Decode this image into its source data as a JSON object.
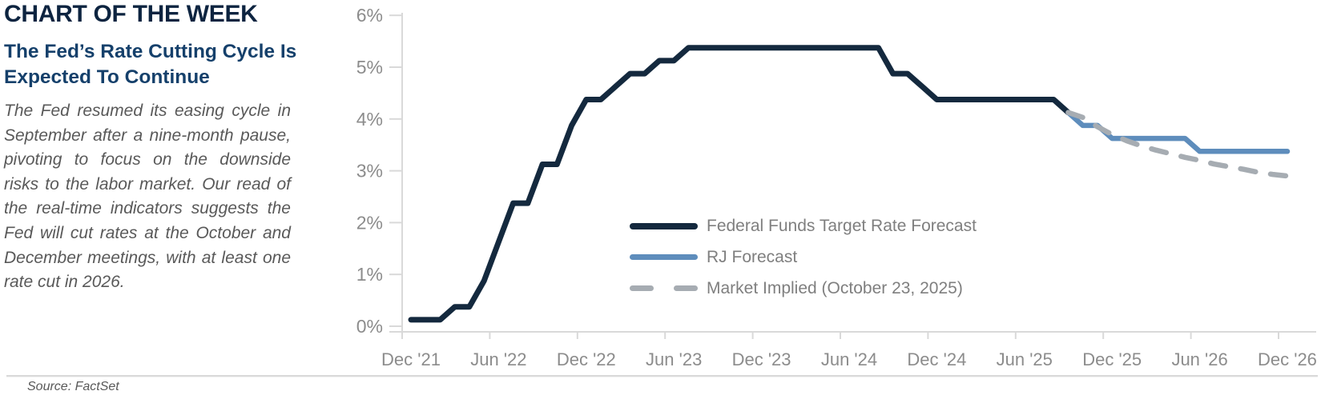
{
  "header": {
    "title": "CHART OF THE WEEK",
    "subtitle": "The Fed’s Rate Cutting Cycle Is Expected To Continue",
    "commentary": "The Fed resumed its easing cycle in September after a nine-month pause, pivoting to focus on the downside risks to the labor market. Our read of the real-time indicators suggests the Fed will cut rates at the October and December meetings, with at least one rate cut in 2026."
  },
  "footer": {
    "source": "Source: FactSet"
  },
  "legend": {
    "items": [
      {
        "label": "Federal Funds Target Rate Forecast",
        "swatch": "navy-solid"
      },
      {
        "label": "RJ Forecast",
        "swatch": "blue-solid"
      },
      {
        "label": "Market Implied (October 23, 2025)",
        "swatch": "gray-dashed"
      }
    ]
  },
  "colors": {
    "navy": "#14293e",
    "blue": "#5e8dbc",
    "gray_dashed": "#a6acb2",
    "axis_line": "#d9d9d9",
    "axis_text": "#8c8c8c",
    "legend_text": "#7f7f7f",
    "heading_text": "#0d2440",
    "subheading_text": "#15406b",
    "body_text": "#595959"
  },
  "chart_data": {
    "type": "line",
    "title": "",
    "xlabel": "",
    "ylabel": "",
    "x_unit": "months since Dec 2021",
    "ylim": [
      0,
      6
    ],
    "grid": false,
    "legend_position": "inside-lower-right",
    "y_tick_labels": [
      "0%",
      "1%",
      "2%",
      "3%",
      "4%",
      "5%",
      "6%"
    ],
    "y_tick_values": [
      0,
      1,
      2,
      3,
      4,
      5,
      6
    ],
    "x_tick_labels": [
      "Dec '21",
      "Jun '22",
      "Dec '22",
      "Jun '23",
      "Dec '23",
      "Jun '24",
      "Dec '24",
      "Jun '25",
      "Dec '25",
      "Jun '26",
      "Dec '26"
    ],
    "x_tick_months": [
      0,
      6,
      12,
      18,
      24,
      30,
      36,
      42,
      48,
      54,
      60
    ],
    "series": [
      {
        "name": "Federal Funds Target Rate Forecast",
        "color": "#14293e",
        "style": "solid",
        "width": 7,
        "points": [
          [
            0,
            0.125
          ],
          [
            2,
            0.125
          ],
          [
            3,
            0.375
          ],
          [
            4,
            0.375
          ],
          [
            5,
            0.875
          ],
          [
            6,
            1.625
          ],
          [
            7,
            2.375
          ],
          [
            8,
            2.375
          ],
          [
            9,
            3.125
          ],
          [
            10,
            3.125
          ],
          [
            11,
            3.875
          ],
          [
            12,
            4.375
          ],
          [
            13,
            4.375
          ],
          [
            14,
            4.625
          ],
          [
            15,
            4.875
          ],
          [
            16,
            4.875
          ],
          [
            17,
            5.125
          ],
          [
            18,
            5.125
          ],
          [
            19,
            5.375
          ],
          [
            32,
            5.375
          ],
          [
            33,
            4.875
          ],
          [
            34,
            4.875
          ],
          [
            35,
            4.625
          ],
          [
            36,
            4.375
          ],
          [
            44,
            4.375
          ],
          [
            45,
            4.125
          ]
        ]
      },
      {
        "name": "RJ Forecast",
        "color": "#5e8dbc",
        "style": "solid",
        "width": 6.5,
        "points": [
          [
            45,
            4.125
          ],
          [
            46,
            3.875
          ],
          [
            47,
            3.875
          ],
          [
            48,
            3.625
          ],
          [
            53,
            3.625
          ],
          [
            54,
            3.375
          ],
          [
            60,
            3.375
          ]
        ]
      },
      {
        "name": "Market Implied (October 23, 2025)",
        "color": "#a6acb2",
        "style": "dashed",
        "width": 6.5,
        "points": [
          [
            45,
            4.125
          ],
          [
            46,
            4.03
          ],
          [
            47,
            3.85
          ],
          [
            48,
            3.7
          ],
          [
            49,
            3.58
          ],
          [
            50,
            3.48
          ],
          [
            51,
            3.4
          ],
          [
            52,
            3.33
          ],
          [
            53,
            3.26
          ],
          [
            54,
            3.2
          ],
          [
            55,
            3.13
          ],
          [
            56,
            3.08
          ],
          [
            57,
            3.03
          ],
          [
            58,
            2.97
          ],
          [
            59,
            2.93
          ],
          [
            60,
            2.9
          ]
        ]
      }
    ]
  }
}
